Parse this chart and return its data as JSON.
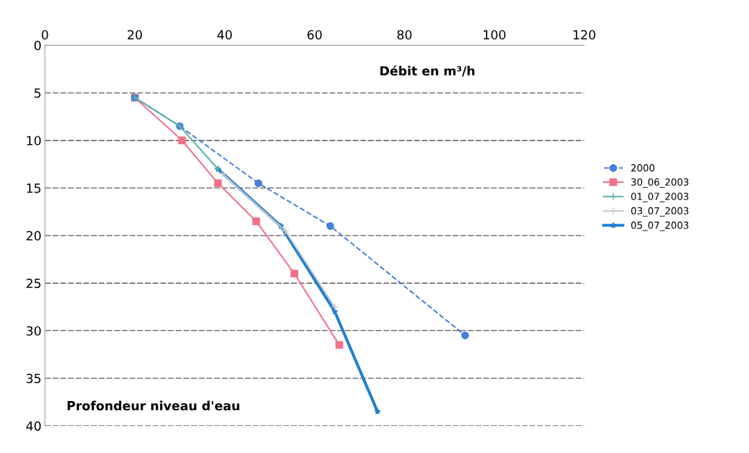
{
  "chart_data": {
    "type": "line",
    "xlabel": "Débit en m³/h",
    "ylabel": "Profondeur niveau d'eau",
    "xlim": [
      0,
      120
    ],
    "xticks": [
      0,
      20,
      40,
      60,
      80,
      100,
      120
    ],
    "ylim": [
      40,
      0
    ],
    "yticks": [
      0,
      5,
      10,
      15,
      20,
      25,
      30,
      35,
      40
    ],
    "grid": "y",
    "legend": "right",
    "series": [
      {
        "name": "2000",
        "color": "#4a7fd8",
        "marker": "circle",
        "line_style": "dashed",
        "x": [
          20,
          30,
          47.5,
          63.5,
          93.5
        ],
        "values": [
          5.5,
          8.5,
          14.5,
          19,
          30.5
        ]
      },
      {
        "name": "30_06_2003",
        "color": "#f07088",
        "marker": "square",
        "line_style": "solid",
        "x": [
          20,
          30.5,
          38.5,
          47,
          55.5,
          65.5
        ],
        "values": [
          5.5,
          10,
          14.5,
          18.5,
          24,
          31.5
        ]
      },
      {
        "name": "01_07_2003",
        "color": "#5ab0a8",
        "marker": "cross",
        "line_style": "solid",
        "x": [
          20,
          30,
          38.5
        ],
        "values": [
          5.5,
          8.5,
          13
        ]
      },
      {
        "name": "03_07_2003",
        "color": "#c8c8c8",
        "marker": "cross",
        "line_style": "solid",
        "x": [
          39.5,
          53.5,
          64.5
        ],
        "values": [
          13.5,
          19.5,
          27.5
        ]
      },
      {
        "name": "05_07_2003",
        "color": "#1f7fd0",
        "marker": "star",
        "line_style": "solid",
        "x": [
          38.5,
          52.5,
          64.5,
          74
        ],
        "values": [
          13,
          19,
          28,
          38.5
        ]
      }
    ]
  }
}
